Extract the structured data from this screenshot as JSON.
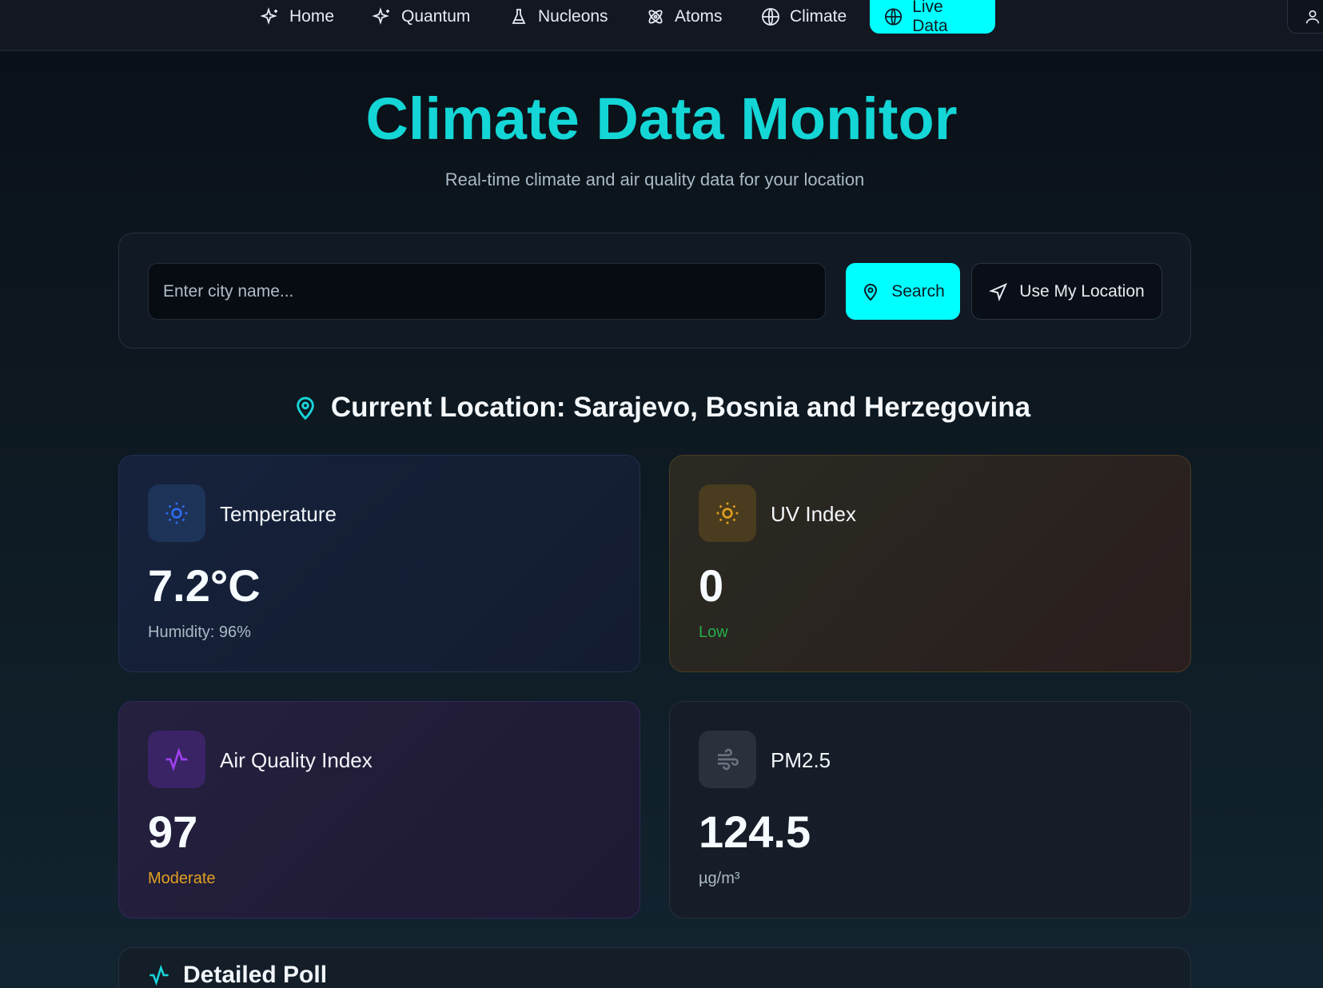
{
  "nav": {
    "items": [
      {
        "label": "Home",
        "icon": "sparkles-icon"
      },
      {
        "label": "Quantum",
        "icon": "sparkles-icon"
      },
      {
        "label": "Nucleons",
        "icon": "flask-icon"
      },
      {
        "label": "Atoms",
        "icon": "atom-icon"
      },
      {
        "label": "Climate",
        "icon": "globe-icon"
      },
      {
        "label": "Live Data",
        "icon": "globe-icon",
        "active": true
      }
    ],
    "user_icon": "user-icon"
  },
  "header": {
    "title": "Climate Data Monitor",
    "subtitle": "Real-time climate and air quality data for your location"
  },
  "search": {
    "placeholder": "Enter city name...",
    "value": "",
    "search_label": "Search",
    "location_label": "Use My Location"
  },
  "location": {
    "heading": "Current Location: Sarajevo, Bosnia and Herzegovina"
  },
  "cards": {
    "temperature": {
      "title": "Temperature",
      "value": "7.2°C",
      "sub": "Humidity: 96%",
      "accent": "#3b6fe0"
    },
    "uv": {
      "title": "UV Index",
      "value": "0",
      "sub": "Low",
      "accent": "#e0a020",
      "sub_color": "#22b04a"
    },
    "aqi": {
      "title": "Air Quality Index",
      "value": "97",
      "sub": "Moderate",
      "accent": "#9a40e0",
      "sub_color": "#e0a020"
    },
    "pm25": {
      "title": "PM2.5",
      "value": "124.5",
      "sub": "µg/m³",
      "accent": "#7a8290"
    }
  },
  "bottom": {
    "title": "Detailed Poll"
  },
  "colors": {
    "primary": "#00ffff",
    "title": "#14d6d6"
  }
}
